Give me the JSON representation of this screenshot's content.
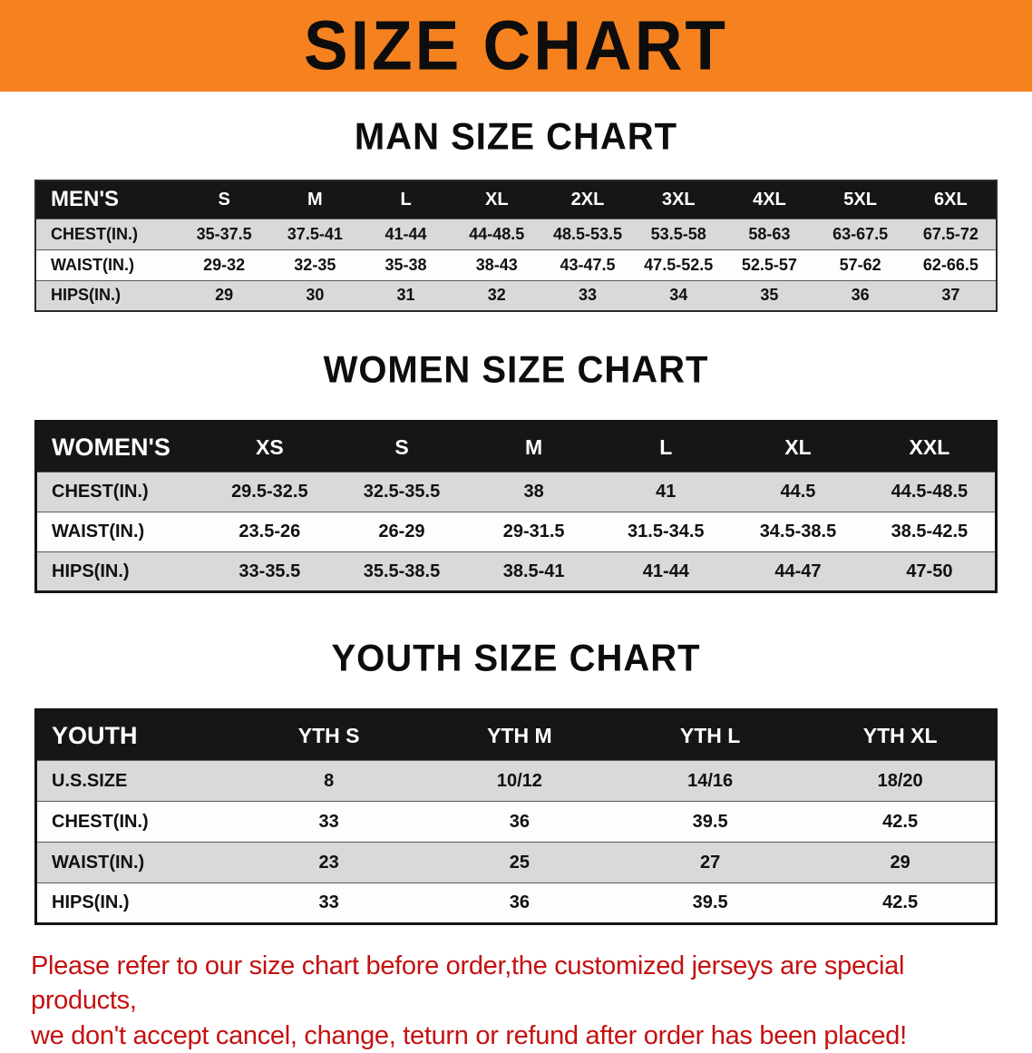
{
  "colors": {
    "banner_bg": "#f6821f",
    "header_bg": "#161616",
    "row_gray": "#d9d9d9",
    "footer_color": "#c41111"
  },
  "banner": {
    "title": "SIZE CHART"
  },
  "sections": [
    {
      "heading": "MAN SIZE CHART",
      "table": {
        "header": [
          "MEN'S",
          "S",
          "M",
          "L",
          "XL",
          "2XL",
          "3XL",
          "4XL",
          "5XL",
          "6XL"
        ],
        "rows": [
          {
            "label": "CHEST(IN.)",
            "values": [
              "35-37.5",
              "37.5-41",
              "41-44",
              "44-48.5",
              "48.5-53.5",
              "53.5-58",
              "58-63",
              "63-67.5",
              "67.5-72"
            ]
          },
          {
            "label": "WAIST(IN.)",
            "values": [
              "29-32",
              "32-35",
              "35-38",
              "38-43",
              "43-47.5",
              "47.5-52.5",
              "52.5-57",
              "57-62",
              "62-66.5"
            ]
          },
          {
            "label": "HIPS(IN.)",
            "values": [
              "29",
              "30",
              "31",
              "32",
              "33",
              "34",
              "35",
              "36",
              "37"
            ]
          }
        ]
      }
    },
    {
      "heading": "WOMEN SIZE CHART",
      "table": {
        "header": [
          "WOMEN'S",
          "XS",
          "S",
          "M",
          "L",
          "XL",
          "XXL"
        ],
        "rows": [
          {
            "label": "CHEST(IN.)",
            "values": [
              "29.5-32.5",
              "32.5-35.5",
              "38",
              "41",
              "44.5",
              "44.5-48.5"
            ]
          },
          {
            "label": "WAIST(IN.)",
            "values": [
              "23.5-26",
              "26-29",
              "29-31.5",
              "31.5-34.5",
              "34.5-38.5",
              "38.5-42.5"
            ]
          },
          {
            "label": "HIPS(IN.)",
            "values": [
              "33-35.5",
              "35.5-38.5",
              "38.5-41",
              "41-44",
              "44-47",
              "47-50"
            ]
          }
        ]
      }
    },
    {
      "heading": "YOUTH SIZE CHART",
      "table": {
        "header": [
          "YOUTH",
          "YTH S",
          "YTH M",
          "YTH L",
          "YTH XL"
        ],
        "rows": [
          {
            "label": "U.S.SIZE",
            "values": [
              "8",
              "10/12",
              "14/16",
              "18/20"
            ]
          },
          {
            "label": "CHEST(IN.)",
            "values": [
              "33",
              "36",
              "39.5",
              "42.5"
            ]
          },
          {
            "label": "WAIST(IN.)",
            "values": [
              "23",
              "25",
              "27",
              "29"
            ]
          },
          {
            "label": "HIPS(IN.)",
            "values": [
              "33",
              "36",
              "39.5",
              "42.5"
            ]
          }
        ]
      }
    }
  ],
  "footer": {
    "line1": "Please refer to our size chart before order,the customized jerseys are special products,",
    "line2": "we don't accept cancel, change, teturn or refund after order has been placed!"
  }
}
